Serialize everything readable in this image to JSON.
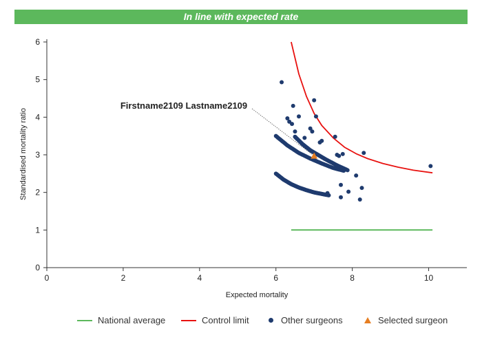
{
  "banner": {
    "text": "In line with expected rate",
    "color": "#5cb85c"
  },
  "chart_data": {
    "type": "scatter",
    "xlabel": "Expected mortality",
    "ylabel": "Standardised mortality ratio",
    "xlim": [
      0,
      11
    ],
    "ylim": [
      0,
      6
    ],
    "xticks": [
      0,
      2,
      4,
      6,
      8,
      10
    ],
    "yticks": [
      0,
      1,
      2,
      3,
      4,
      5,
      6
    ],
    "grid": false,
    "legend_position": "bottom",
    "colors": {
      "national_average": "#5cb85c",
      "control_limit": "#e8110f",
      "other_surgeons": "#1f3b6e",
      "selected_surgeon": "#e67e22"
    },
    "national_average": {
      "x": [
        6.4,
        10.1
      ],
      "y": [
        1,
        1
      ]
    },
    "control_limit": {
      "x": [
        6.4,
        6.6,
        6.8,
        7.0,
        7.2,
        7.5,
        7.8,
        8.1,
        8.4,
        8.8,
        9.2,
        9.6,
        10.1
      ],
      "y": [
        6.0,
        5.15,
        4.55,
        4.1,
        3.78,
        3.45,
        3.2,
        3.03,
        2.9,
        2.77,
        2.67,
        2.59,
        2.52
      ]
    },
    "curves": [
      {
        "x": [
          6.0,
          6.2,
          6.4,
          6.6,
          6.8,
          7.0,
          7.2,
          7.4
        ],
        "y": [
          2.5,
          2.34,
          2.22,
          2.13,
          2.06,
          2.0,
          1.96,
          1.92
        ]
      },
      {
        "x": [
          6.0,
          6.3,
          6.6,
          6.9,
          7.2,
          7.5,
          7.8
        ],
        "y": [
          3.5,
          3.25,
          3.05,
          2.9,
          2.77,
          2.65,
          2.57
        ]
      },
      {
        "x": [
          6.5,
          6.7,
          6.9,
          7.1,
          7.3,
          7.6,
          7.9
        ],
        "y": [
          3.48,
          3.28,
          3.12,
          3.0,
          2.88,
          2.72,
          2.58
        ]
      }
    ],
    "other_surgeons": {
      "x": [
        6.15,
        6.45,
        6.5,
        6.9,
        6.95,
        7.0,
        7.05,
        7.2,
        7.55,
        7.6,
        7.65,
        7.7,
        7.75,
        7.9,
        8.1,
        8.2,
        8.25,
        8.3,
        10.05,
        6.3,
        6.35,
        6.42,
        6.6,
        6.75,
        7.15,
        7.7,
        7.35
      ],
      "y": [
        4.93,
        4.3,
        3.62,
        3.7,
        3.62,
        4.45,
        4.02,
        3.37,
        3.48,
        3.0,
        2.97,
        2.2,
        3.02,
        2.02,
        2.45,
        1.81,
        2.12,
        3.05,
        2.7,
        3.97,
        3.88,
        3.82,
        4.02,
        3.45,
        3.33,
        1.87,
        1.98
      ]
    },
    "selected_surgeon": {
      "x": 7.0,
      "y": 2.97
    },
    "annotation": {
      "text": "Firstname2109 Lastname2109"
    }
  },
  "legend": [
    {
      "label": "National average",
      "symbol": "line",
      "key": "national_average"
    },
    {
      "label": "Control limit",
      "symbol": "line",
      "key": "control_limit"
    },
    {
      "label": "Other surgeons",
      "symbol": "dot",
      "key": "other_surgeons"
    },
    {
      "label": "Selected surgeon",
      "symbol": "triangle",
      "key": "selected_surgeon"
    }
  ]
}
